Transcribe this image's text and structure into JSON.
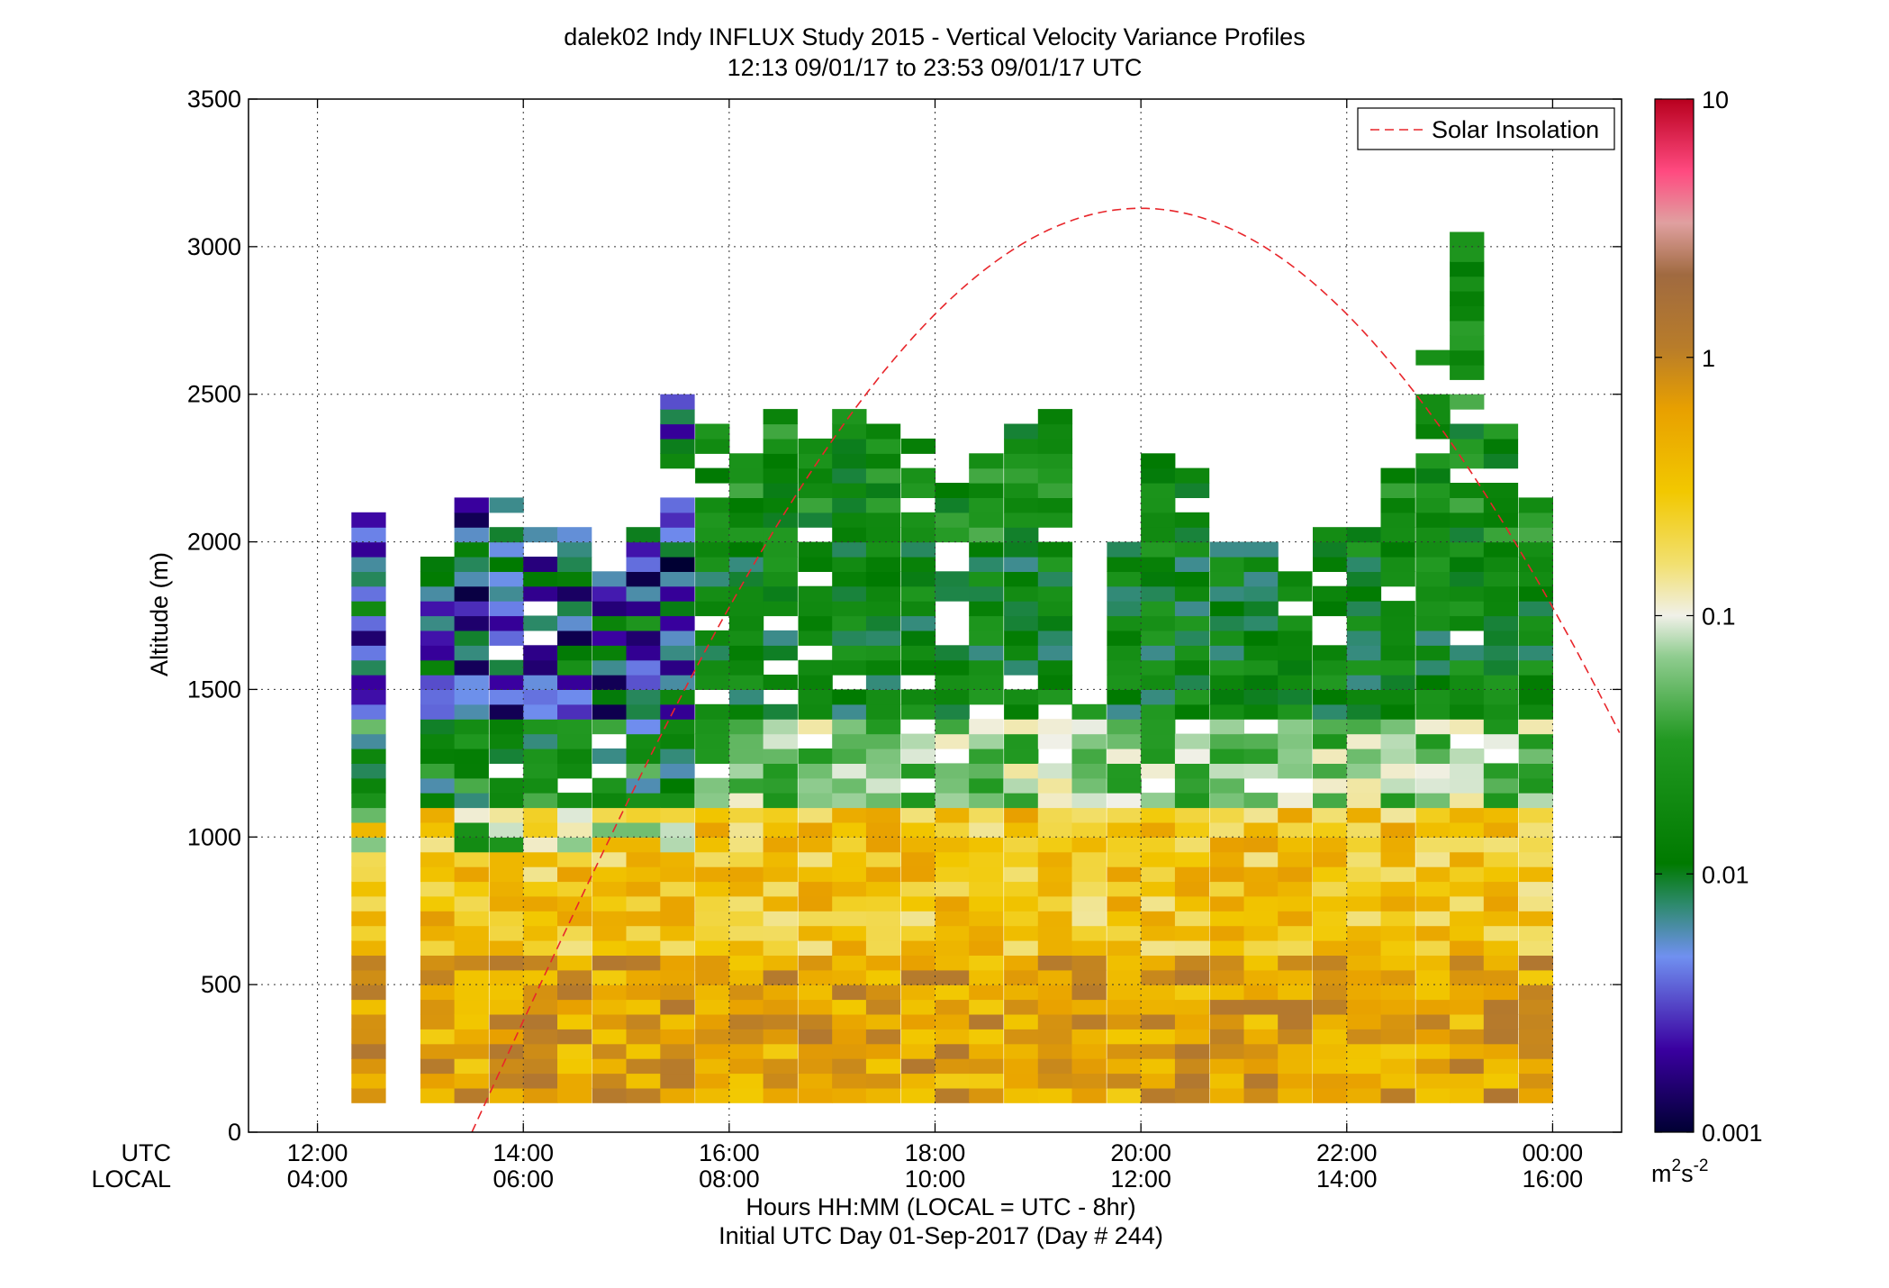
{
  "chart_data": {
    "type": "heatmap",
    "title": "dalek02 Indy INFLUX Study 2015 - Vertical Velocity Variance Profiles",
    "subtitle": "12:13 09/01/17 to 23:53 09/01/17  UTC",
    "ylabel": "Altitude (m)",
    "xlabel": "Hours HH:MM  (LOCAL = UTC - 8hr)",
    "xlabel2": "Initial UTC Day 01-Sep-2017 (Day # 244)",
    "x_row_labels": [
      "UTC",
      "LOCAL"
    ],
    "xlim_hours": [
      11.33,
      24.67
    ],
    "ylim": [
      0,
      3500
    ],
    "x_ticks": [
      {
        "hour": 12,
        "utc": "12:00",
        "local": "04:00"
      },
      {
        "hour": 14,
        "utc": "14:00",
        "local": "06:00"
      },
      {
        "hour": 16,
        "utc": "16:00",
        "local": "08:00"
      },
      {
        "hour": 18,
        "utc": "18:00",
        "local": "10:00"
      },
      {
        "hour": 20,
        "utc": "20:00",
        "local": "12:00"
      },
      {
        "hour": 22,
        "utc": "22:00",
        "local": "14:00"
      },
      {
        "hour": 24,
        "utc": "00:00",
        "local": "16:00"
      }
    ],
    "y_ticks": [
      "0",
      "500",
      "1000",
      "1500",
      "2000",
      "2500",
      "3000",
      "3500"
    ],
    "grid": true,
    "legend": {
      "label": "Solar Insolation",
      "placement": "top-right",
      "color": "#e8262b"
    },
    "solar_insolation": {
      "start_hour": 13.5,
      "peak_hour": 20.0,
      "peak_altitude": 3130
    },
    "colorbar": {
      "scale": "log",
      "min": 0.001,
      "max": 10,
      "tick_labels": [
        "0.001",
        "0.01",
        "0.1",
        "1",
        "10"
      ],
      "units": "m²s⁻²",
      "units_base": "m",
      "units_exp1": "2",
      "units_mid": "s",
      "units_exp2": "-2"
    },
    "profile_start_hours": [
      12.33,
      13.0,
      13.33,
      13.67,
      14.0,
      14.33,
      14.67,
      15.0,
      15.33,
      15.67,
      16.0,
      16.33,
      16.67,
      17.0,
      17.33,
      17.67,
      18.0,
      18.33,
      18.67,
      19.0,
      19.33,
      19.67,
      20.0,
      20.33,
      20.67,
      21.0,
      21.33,
      21.67,
      22.0,
      22.33,
      22.67,
      23.0,
      23.33,
      23.67
    ],
    "profile_width_hours": 0.33,
    "gate_height_m": 50,
    "profile_top_altitudes": [
      2100,
      1950,
      2150,
      2150,
      2050,
      2050,
      1900,
      2050,
      2550,
      2500,
      2300,
      2450,
      2350,
      2450,
      2400,
      2350,
      2250,
      2300,
      2400,
      2450,
      1450,
      2000,
      2300,
      2250,
      2000,
      2000,
      1900,
      2050,
      2050,
      2250,
      2650,
      3050,
      2450,
      2150
    ],
    "variance_layers": [
      {
        "from": 0,
        "to": 600,
        "variance": 0.6
      },
      {
        "from": 600,
        "to": 1100,
        "variance": 0.3
      },
      {
        "from": 1100,
        "to": 1400,
        "variance": 0.06
      },
      {
        "from": 1400,
        "to": 2000,
        "variance": 0.015
      },
      {
        "from": 2000,
        "to": 3100,
        "variance": 0.02
      }
    ]
  }
}
